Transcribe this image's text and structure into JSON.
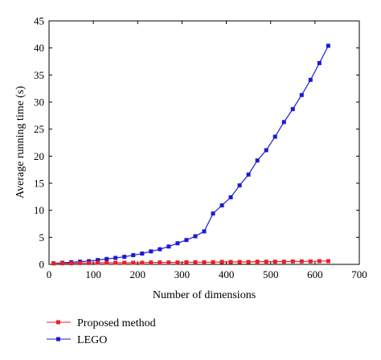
{
  "chart_data": {
    "type": "line",
    "xlabel": "Number of dimensions",
    "ylabel": "Average running time (s)",
    "xlim": [
      0,
      700
    ],
    "ylim": [
      0,
      45
    ],
    "xticks": [
      0,
      100,
      200,
      300,
      400,
      500,
      600,
      700
    ],
    "yticks": [
      0,
      5,
      10,
      15,
      20,
      25,
      30,
      35,
      40,
      45
    ],
    "grid": false,
    "legend_position": "bottom-left, below plot",
    "series": [
      {
        "name": "Proposed method",
        "color": "#e8202a",
        "marker": "square",
        "x": [
          10,
          30,
          50,
          70,
          90,
          110,
          130,
          150,
          170,
          190,
          210,
          230,
          250,
          270,
          290,
          310,
          330,
          350,
          370,
          390,
          410,
          430,
          450,
          470,
          490,
          510,
          530,
          550,
          570,
          590,
          610,
          630
        ],
        "values": [
          0.2,
          0.2,
          0.2,
          0.25,
          0.25,
          0.3,
          0.3,
          0.3,
          0.3,
          0.3,
          0.3,
          0.35,
          0.35,
          0.35,
          0.35,
          0.4,
          0.4,
          0.4,
          0.4,
          0.45,
          0.45,
          0.45,
          0.45,
          0.5,
          0.5,
          0.5,
          0.5,
          0.55,
          0.55,
          0.55,
          0.6,
          0.6
        ]
      },
      {
        "name": "LEGO",
        "color": "#1a1ad4",
        "marker": "square",
        "x": [
          10,
          30,
          50,
          70,
          90,
          110,
          130,
          150,
          170,
          190,
          210,
          230,
          250,
          270,
          290,
          310,
          330,
          350,
          370,
          390,
          410,
          430,
          450,
          470,
          490,
          510,
          530,
          550,
          570,
          590,
          610,
          630
        ],
        "values": [
          0.2,
          0.3,
          0.4,
          0.5,
          0.6,
          0.8,
          1.0,
          1.2,
          1.4,
          1.7,
          2.0,
          2.4,
          2.8,
          3.3,
          3.9,
          4.5,
          5.2,
          6.1,
          9.4,
          10.9,
          12.4,
          14.6,
          16.6,
          19.2,
          21.1,
          23.6,
          26.3,
          28.7,
          31.3,
          34.1,
          37.2,
          40.4
        ]
      }
    ]
  }
}
